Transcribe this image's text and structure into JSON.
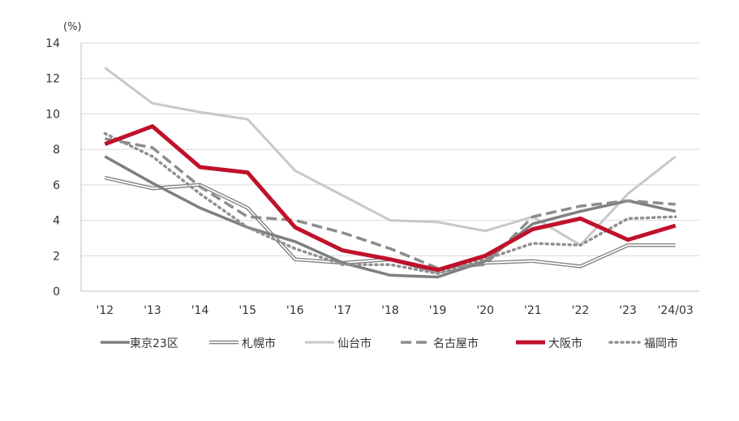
{
  "chart_data": {
    "type": "line",
    "title": "",
    "xlabel": "",
    "ylabel": "",
    "y_unit_label": "(%)",
    "categories": [
      "'12",
      "'13",
      "'14",
      "'15",
      "'16",
      "'17",
      "'18",
      "'19",
      "'20",
      "'21",
      "'22",
      "'23",
      "'24/03"
    ],
    "ylim": [
      0,
      14
    ],
    "yticks": [
      0,
      2,
      4,
      6,
      8,
      10,
      12,
      14
    ],
    "grid": true,
    "legend_position": "bottom",
    "series": [
      {
        "name": "東京23区",
        "color": "#7f7f7f",
        "style": "solid-thick",
        "values": [
          7.6,
          6.1,
          4.7,
          3.6,
          2.8,
          1.6,
          0.9,
          0.8,
          1.7,
          3.8,
          4.5,
          5.1,
          4.5
        ]
      },
      {
        "name": "札幌市",
        "color": "#808080",
        "style": "double",
        "values": [
          6.4,
          5.8,
          6.0,
          4.7,
          1.8,
          1.6,
          1.8,
          1.1,
          1.6,
          1.7,
          1.4,
          2.6,
          2.6
        ]
      },
      {
        "name": "仙台市",
        "color": "#c8c8c8",
        "style": "solid",
        "values": [
          12.6,
          10.6,
          10.1,
          9.7,
          6.8,
          5.4,
          4.0,
          3.9,
          3.4,
          4.2,
          2.6,
          5.5,
          7.6
        ]
      },
      {
        "name": "名古屋市",
        "color": "#8c8c8c",
        "style": "dashed",
        "values": [
          8.6,
          8.1,
          5.9,
          4.2,
          4.0,
          3.3,
          2.4,
          1.3,
          1.5,
          4.2,
          4.8,
          5.1,
          4.9
        ]
      },
      {
        "name": "大阪市",
        "color": "#c0112b",
        "style": "solid-bold",
        "values": [
          8.3,
          9.3,
          7.0,
          6.7,
          3.6,
          2.3,
          1.8,
          1.2,
          2.0,
          3.5,
          4.1,
          2.9,
          3.7
        ]
      },
      {
        "name": "福岡市",
        "color": "#909090",
        "style": "dotted",
        "values": [
          8.9,
          7.6,
          5.5,
          3.6,
          2.4,
          1.5,
          1.5,
          1.0,
          1.8,
          2.7,
          2.6,
          4.1,
          4.2
        ]
      }
    ]
  }
}
